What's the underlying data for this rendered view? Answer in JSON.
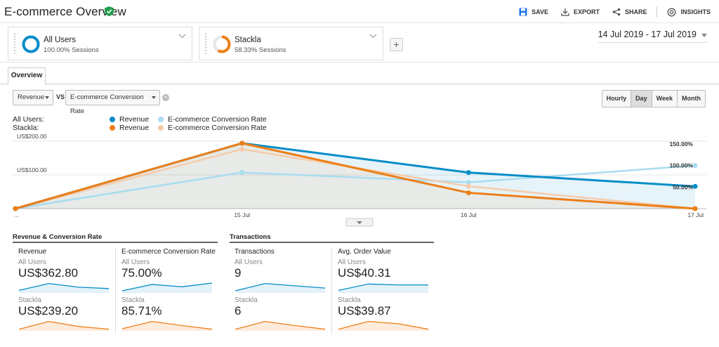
{
  "header": {
    "title": "E-commerce Overview",
    "actions": [
      {
        "label": "SAVE",
        "icon": "save-icon"
      },
      {
        "label": "EXPORT",
        "icon": "export-icon"
      },
      {
        "label": "SHARE",
        "icon": "share-icon"
      },
      {
        "label": "INSIGHTS",
        "icon": "insights-icon"
      }
    ]
  },
  "segments": [
    {
      "name": "All Users",
      "sub": "100.00% Sessions",
      "color": "#058dc7",
      "fraction": 1.0
    },
    {
      "name": "Stackla",
      "sub": "58.33% Sessions",
      "color": "#ed7e17",
      "fraction": 0.5833
    }
  ],
  "date_range": "14 Jul 2019 - 17 Jul 2019",
  "tabs": [
    {
      "label": "Overview"
    }
  ],
  "controls": {
    "metric1": "Revenue",
    "vs": "VS",
    "metric2": "E-commerce Conversion Rate",
    "granularity": [
      "Hourly",
      "Day",
      "Week",
      "Month"
    ],
    "active_granularity": "Day"
  },
  "legend": {
    "rows": [
      {
        "segment": "All Users:",
        "items": [
          {
            "label": "Revenue",
            "color": "#058dc7"
          },
          {
            "label": "E-commerce Conversion Rate",
            "color": "#a8dcf0"
          }
        ]
      },
      {
        "segment": "Stackla:",
        "items": [
          {
            "label": "Revenue",
            "color": "#ed7e17"
          },
          {
            "label": "E-commerce Conversion Rate",
            "color": "#f5ccab"
          }
        ]
      }
    ]
  },
  "chart_data": {
    "type": "line",
    "x": [
      "…",
      "15 Jul",
      "16 Jul",
      "17 Jul"
    ],
    "y_left_ticks": [
      "US$100.00",
      "US$200.00"
    ],
    "y_right_ticks": [
      "50.00%",
      "100.00%",
      "150.00%"
    ],
    "ylim_left": [
      0,
      200
    ],
    "ylim_right": [
      0,
      150
    ],
    "series": [
      {
        "name": "Revenue",
        "segment": "All Users",
        "axis": "left",
        "color": "#058dc7",
        "values": [
          0,
          194,
          107,
          66
        ]
      },
      {
        "name": "E-commerce Conversion Rate",
        "segment": "All Users",
        "axis": "right",
        "color": "#a8dcf0",
        "values": [
          0,
          84,
          61,
          100
        ]
      },
      {
        "name": "Revenue",
        "segment": "Stackla",
        "axis": "left",
        "color": "#ed7e17",
        "values": [
          0,
          194,
          47,
          0
        ]
      },
      {
        "name": "E-commerce Conversion Rate",
        "segment": "Stackla",
        "axis": "right",
        "color": "#f5ccab",
        "values": [
          0,
          138,
          52,
          0
        ]
      }
    ]
  },
  "summary": {
    "sections": [
      {
        "title": "Revenue & Conversion Rate"
      },
      {
        "title": "Transactions"
      }
    ],
    "cards": [
      {
        "metric": "Revenue",
        "seg1": "All Users",
        "val1": "US$362.80",
        "seg2": "Stackla",
        "val2": "US$239.20",
        "spark1": [
          0.2,
          0.95,
          0.55,
          0.4
        ],
        "spark2": [
          0.1,
          0.95,
          0.4,
          0.1
        ]
      },
      {
        "metric": "E-commerce Conversion Rate",
        "seg1": "All Users",
        "val1": "75.00%",
        "seg2": "Stackla",
        "val2": "85.71%",
        "spark1": [
          0.15,
          0.85,
          0.6,
          1.0
        ],
        "spark2": [
          0.15,
          0.95,
          0.5,
          0.1
        ]
      },
      {
        "metric": "Transactions",
        "seg1": "All Users",
        "val1": "9",
        "seg2": "Stackla",
        "val2": "6",
        "spark1": [
          0.15,
          0.95,
          0.7,
          0.45
        ],
        "spark2": [
          0.1,
          0.95,
          0.5,
          0.1
        ]
      },
      {
        "metric": "Avg. Order Value",
        "seg1": "All Users",
        "val1": "US$40.31",
        "seg2": "Stackla",
        "val2": "US$39.87",
        "spark1": [
          0.2,
          0.9,
          0.8,
          0.8
        ],
        "spark2": [
          0.1,
          0.95,
          0.7,
          0.1
        ]
      }
    ]
  }
}
